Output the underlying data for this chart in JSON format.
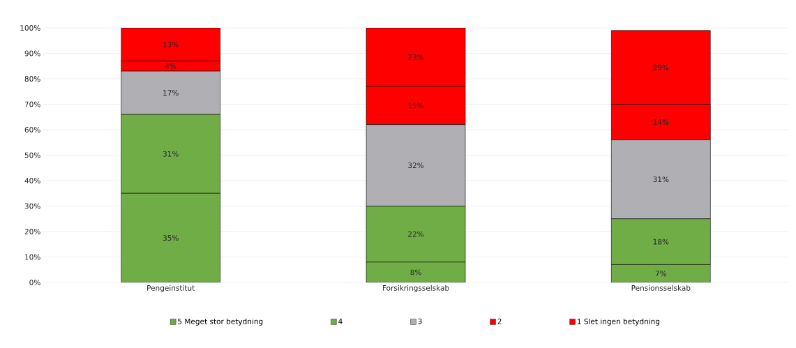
{
  "chart_data": {
    "type": "bar",
    "stacked": true,
    "categories": [
      "Pengeinstitut",
      "Forsikringsselskab",
      "Pensionsselskab"
    ],
    "series": [
      {
        "name": "5 Meget stor betydning",
        "color": "#70ad47",
        "values": [
          35,
          8,
          7
        ],
        "value_labels": [
          "35%",
          "8%",
          "7%"
        ]
      },
      {
        "name": "4",
        "color": "#70ad47",
        "values": [
          31,
          22,
          18
        ],
        "value_labels": [
          "31%",
          "22%",
          "18%"
        ]
      },
      {
        "name": "3",
        "color": "#b0b0b4",
        "values": [
          17,
          32,
          31
        ],
        "value_labels": [
          "17%",
          "32%",
          "31%"
        ]
      },
      {
        "name": "2",
        "color": "#ff0000",
        "values": [
          4,
          15,
          14
        ],
        "value_labels": [
          "4%",
          "15%",
          "14%"
        ]
      },
      {
        "name": "1 Slet ingen betydning",
        "color": "#ff0000",
        "values": [
          13,
          23,
          29
        ],
        "value_labels": [
          "13%",
          "23%",
          "29%"
        ]
      }
    ],
    "ylim": [
      0,
      100
    ],
    "yticks": [
      {
        "value": 0,
        "label": "0%"
      },
      {
        "value": 10,
        "label": "10%"
      },
      {
        "value": 20,
        "label": "20%"
      },
      {
        "value": 30,
        "label": "30%"
      },
      {
        "value": 40,
        "label": "40%"
      },
      {
        "value": 50,
        "label": "50%"
      },
      {
        "value": 60,
        "label": "60%"
      },
      {
        "value": 70,
        "label": "70%"
      },
      {
        "value": 80,
        "label": "80%"
      },
      {
        "value": 90,
        "label": "90%"
      },
      {
        "value": 100,
        "label": "100%"
      }
    ],
    "grid": "y",
    "legend": "bottom"
  }
}
